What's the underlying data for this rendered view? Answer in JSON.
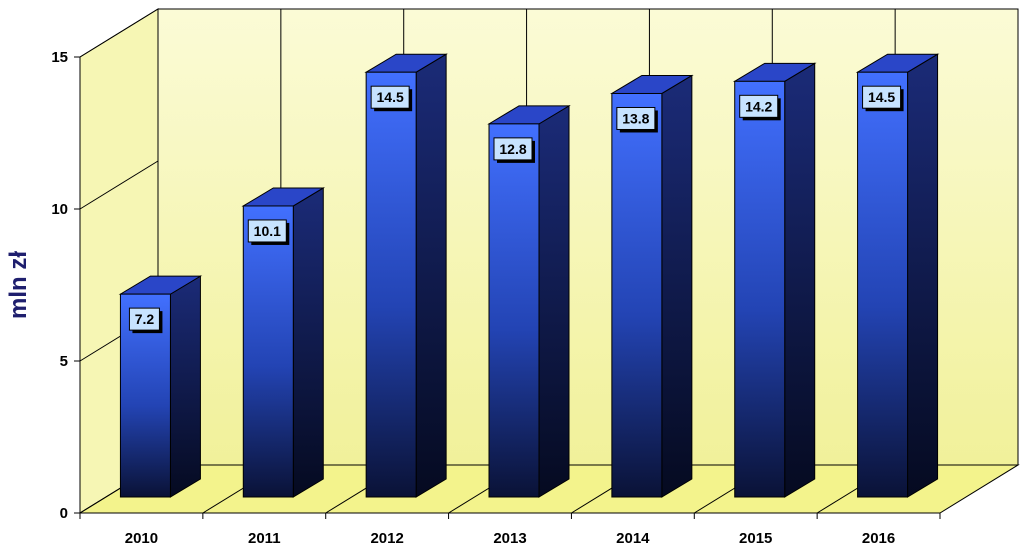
{
  "chart_data": {
    "type": "bar",
    "title": "",
    "xlabel": "",
    "ylabel": "mln zł",
    "ylim": [
      0,
      15
    ],
    "yticks": [
      0,
      5,
      10,
      15
    ],
    "categories": [
      "2010",
      "2011",
      "2012",
      "2013",
      "2014",
      "2015",
      "2016"
    ],
    "values": [
      7.2,
      10.1,
      14.5,
      12.8,
      13.8,
      14.2,
      14.5
    ],
    "data_labels": [
      "7.2",
      "10.1",
      "14.5",
      "12.8",
      "13.8",
      "14.2",
      "14.5"
    ],
    "grid": "vertical lines on back wall",
    "legend": "none",
    "style": "3d-bars",
    "colors": {
      "wall": "#f7f7b0",
      "floor": "#f3f38c",
      "bar_front_top": "#3d6bff",
      "bar_front_bottom": "#0a1440",
      "bar_side": "#14205a",
      "bar_top": "#2a46c8",
      "label_box": "#c7e3ff",
      "ylabel": "#1f1f6e"
    }
  }
}
